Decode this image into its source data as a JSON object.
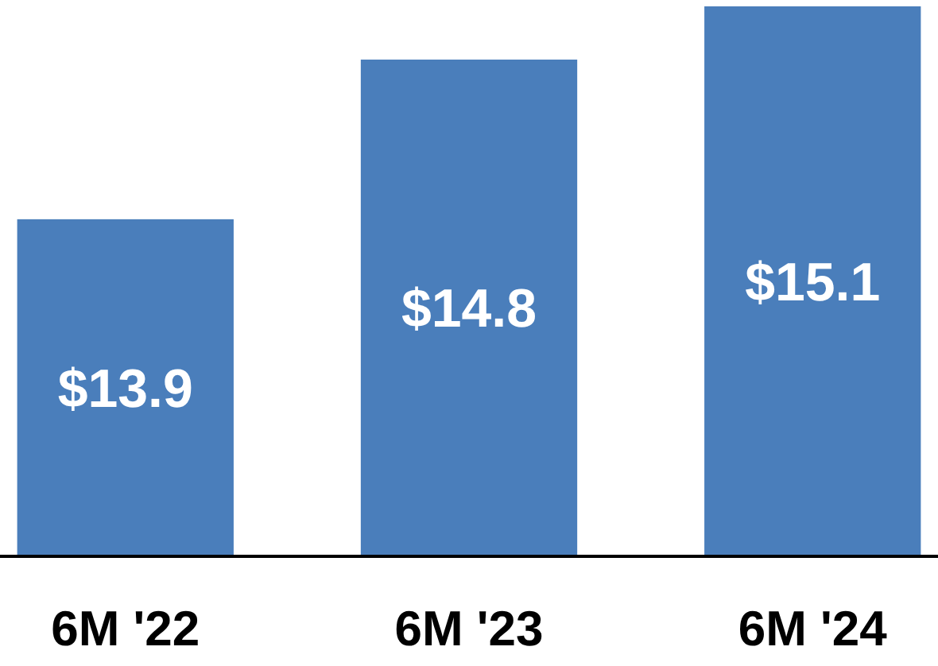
{
  "chart_data": {
    "type": "bar",
    "categories": [
      "6M '22",
      "6M '23",
      "6M '24"
    ],
    "values": [
      13.9,
      14.8,
      15.1
    ],
    "value_labels": [
      "$13.9",
      "$14.8",
      "$15.1"
    ],
    "color": "#4a7ebb",
    "ylim": [
      12,
      15.1
    ],
    "tick_labels": "x"
  }
}
